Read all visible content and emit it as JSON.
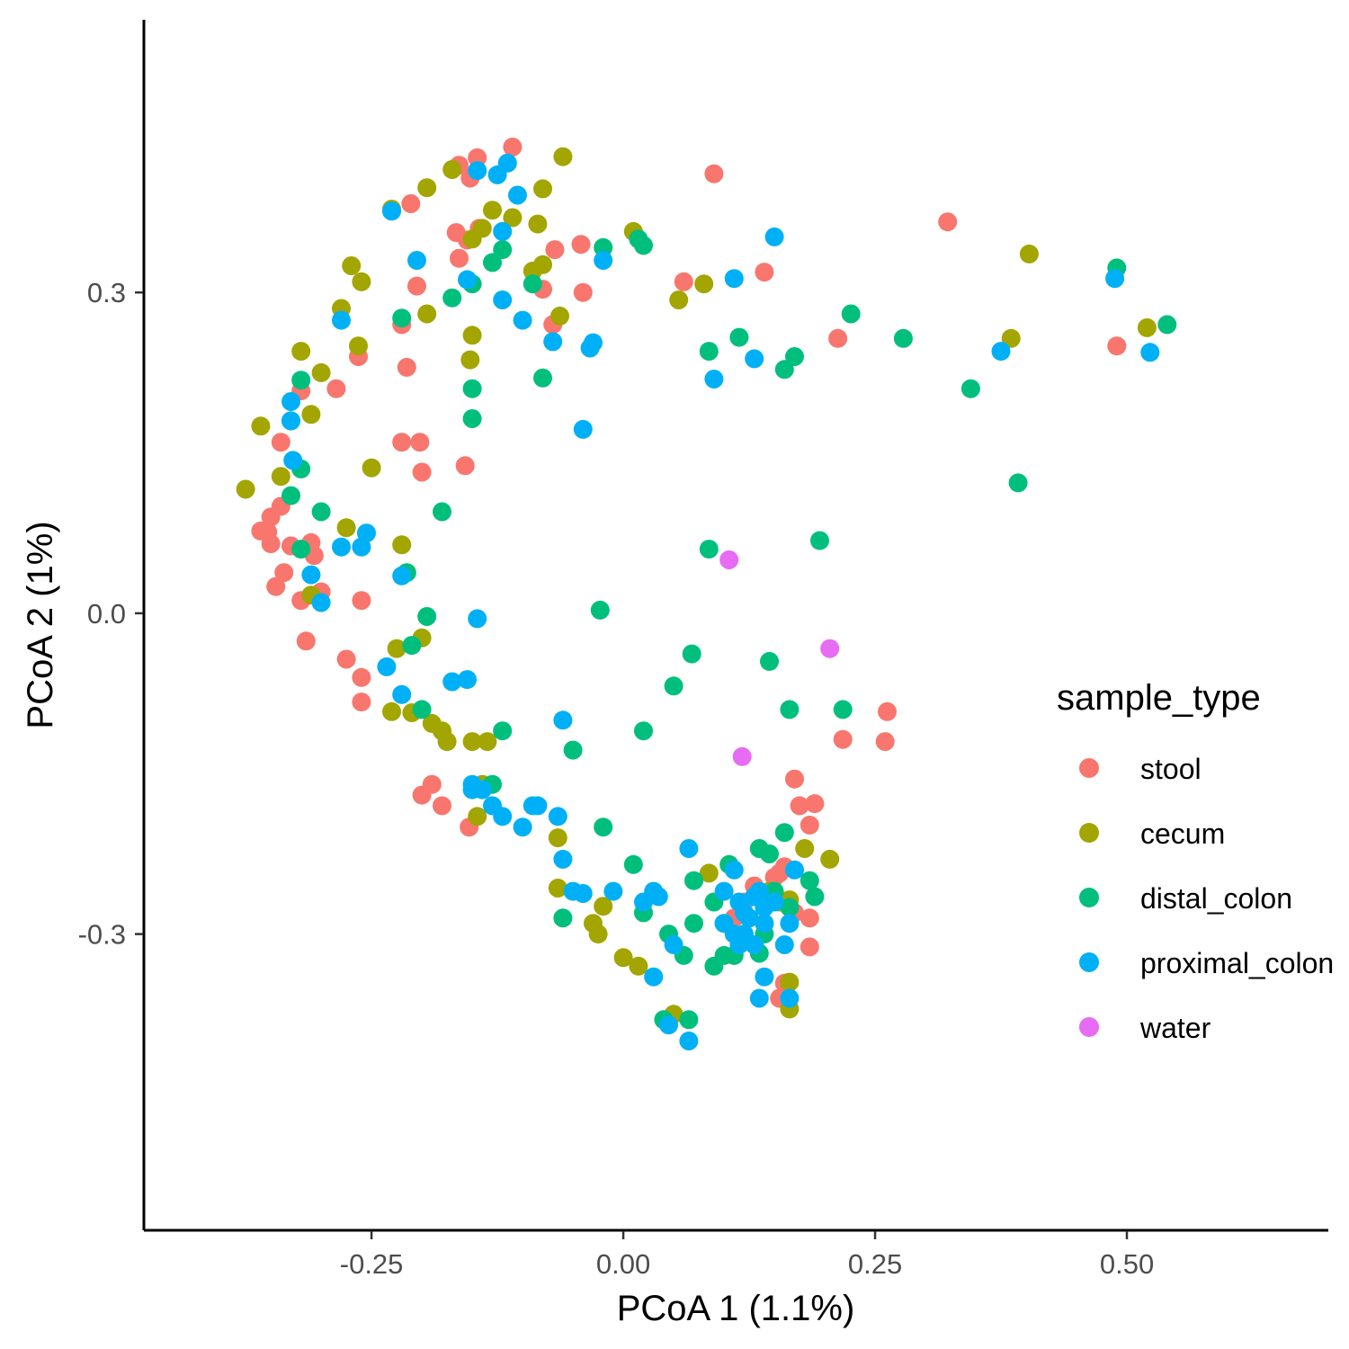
{
  "chart_data": {
    "type": "scatter",
    "title": "",
    "xlabel": "PCoA 1 (1.1%)",
    "ylabel": "PCoA 2 (1%)",
    "xlim": [
      -0.476,
      0.7
    ],
    "ylim": [
      -0.577,
      0.555
    ],
    "x_ticks": [
      {
        "value": -0.25,
        "label": "-0.25"
      },
      {
        "value": 0.0,
        "label": "0.00"
      },
      {
        "value": 0.25,
        "label": "0.25"
      },
      {
        "value": 0.5,
        "label": "0.50"
      }
    ],
    "y_ticks": [
      {
        "value": 0.3,
        "label": "0.3"
      },
      {
        "value": 0.0,
        "label": "0.0"
      },
      {
        "value": -0.3,
        "label": "-0.3"
      }
    ],
    "grid": false,
    "legend": {
      "title": "sample_type",
      "placement": "right",
      "entries": [
        "stool",
        "cecum",
        "distal_colon",
        "proximal_colon",
        "water"
      ]
    },
    "series": [
      {
        "name": "stool",
        "color": "#F8766D",
        "points": [
          [
            -0.11,
            0.436
          ],
          [
            -0.145,
            0.426
          ],
          [
            -0.163,
            0.419
          ],
          [
            -0.152,
            0.407
          ],
          [
            -0.211,
            0.383
          ],
          [
            -0.166,
            0.356
          ],
          [
            -0.143,
            0.36
          ],
          [
            -0.155,
            0.349
          ],
          [
            -0.163,
            0.332
          ],
          [
            -0.205,
            0.306
          ],
          [
            -0.068,
            0.34
          ],
          [
            -0.042,
            0.345
          ],
          [
            -0.08,
            0.303
          ],
          [
            -0.04,
            0.3
          ],
          [
            -0.07,
            0.27
          ],
          [
            -0.22,
            0.27
          ],
          [
            -0.263,
            0.24
          ],
          [
            -0.215,
            0.23
          ],
          [
            -0.285,
            0.21
          ],
          [
            -0.32,
            0.208
          ],
          [
            -0.34,
            0.16
          ],
          [
            -0.22,
            0.16
          ],
          [
            -0.202,
            0.16
          ],
          [
            -0.2,
            0.132
          ],
          [
            -0.157,
            0.138
          ],
          [
            -0.34,
            0.1
          ],
          [
            -0.35,
            0.09
          ],
          [
            -0.36,
            0.077
          ],
          [
            -0.353,
            0.076
          ],
          [
            -0.35,
            0.065
          ],
          [
            -0.33,
            0.063
          ],
          [
            -0.31,
            0.066
          ],
          [
            -0.307,
            0.054
          ],
          [
            -0.337,
            0.038
          ],
          [
            -0.345,
            0.025
          ],
          [
            -0.32,
            0.012
          ],
          [
            -0.3,
            0.02
          ],
          [
            -0.26,
            0.012
          ],
          [
            -0.315,
            -0.026
          ],
          [
            -0.275,
            -0.043
          ],
          [
            -0.26,
            -0.06
          ],
          [
            -0.26,
            -0.083
          ],
          [
            -0.19,
            -0.16
          ],
          [
            -0.2,
            -0.17
          ],
          [
            -0.18,
            -0.18
          ],
          [
            -0.153,
            -0.2
          ],
          [
            0.09,
            0.411
          ],
          [
            0.322,
            0.366
          ],
          [
            0.14,
            0.319
          ],
          [
            0.06,
            0.31
          ],
          [
            0.213,
            0.257
          ],
          [
            0.49,
            0.25
          ],
          [
            0.262,
            -0.092
          ],
          [
            0.26,
            -0.12
          ],
          [
            0.218,
            -0.118
          ],
          [
            0.17,
            -0.155
          ],
          [
            0.175,
            -0.18
          ],
          [
            0.19,
            -0.178
          ],
          [
            0.185,
            -0.198
          ],
          [
            0.16,
            -0.237
          ],
          [
            0.15,
            -0.247
          ],
          [
            0.135,
            -0.26
          ],
          [
            0.13,
            -0.255
          ],
          [
            0.12,
            -0.27
          ],
          [
            0.14,
            -0.29
          ],
          [
            0.11,
            -0.285
          ],
          [
            0.17,
            -0.28
          ],
          [
            0.185,
            -0.285
          ],
          [
            0.185,
            -0.312
          ],
          [
            0.16,
            -0.346
          ],
          [
            0.155,
            -0.36
          ],
          [
            0.155,
            -0.243
          ]
        ]
      },
      {
        "name": "cecum",
        "color": "#A3A500",
        "points": [
          [
            -0.06,
            0.427
          ],
          [
            -0.17,
            0.415
          ],
          [
            -0.195,
            0.398
          ],
          [
            -0.23,
            0.378
          ],
          [
            -0.08,
            0.397
          ],
          [
            -0.13,
            0.377
          ],
          [
            -0.11,
            0.37
          ],
          [
            -0.085,
            0.364
          ],
          [
            -0.14,
            0.36
          ],
          [
            -0.15,
            0.35
          ],
          [
            -0.08,
            0.326
          ],
          [
            -0.09,
            0.32
          ],
          [
            -0.27,
            0.325
          ],
          [
            -0.26,
            0.31
          ],
          [
            -0.28,
            0.285
          ],
          [
            -0.195,
            0.28
          ],
          [
            -0.063,
            0.278
          ],
          [
            -0.15,
            0.26
          ],
          [
            -0.263,
            0.25
          ],
          [
            -0.32,
            0.245
          ],
          [
            -0.152,
            0.237
          ],
          [
            -0.3,
            0.225
          ],
          [
            -0.31,
            0.186
          ],
          [
            -0.36,
            0.175
          ],
          [
            -0.25,
            0.136
          ],
          [
            -0.34,
            0.128
          ],
          [
            -0.375,
            0.116
          ],
          [
            -0.275,
            0.08
          ],
          [
            -0.22,
            0.064
          ],
          [
            -0.31,
            0.017
          ],
          [
            -0.225,
            -0.033
          ],
          [
            -0.2,
            -0.023
          ],
          [
            -0.23,
            -0.092
          ],
          [
            -0.21,
            -0.093
          ],
          [
            -0.19,
            -0.103
          ],
          [
            -0.18,
            -0.11
          ],
          [
            -0.175,
            -0.12
          ],
          [
            -0.15,
            -0.12
          ],
          [
            -0.135,
            -0.12
          ],
          [
            -0.14,
            -0.16
          ],
          [
            -0.145,
            -0.19
          ],
          [
            -0.065,
            -0.21
          ],
          [
            -0.065,
            -0.257
          ],
          [
            -0.02,
            -0.274
          ],
          [
            -0.03,
            -0.29
          ],
          [
            -0.025,
            -0.3
          ],
          [
            0.0,
            -0.322
          ],
          [
            0.015,
            -0.33
          ],
          [
            0.05,
            -0.375
          ],
          [
            0.085,
            -0.243
          ],
          [
            0.145,
            -0.26
          ],
          [
            0.155,
            -0.27
          ],
          [
            0.165,
            -0.268
          ],
          [
            0.18,
            -0.22
          ],
          [
            0.205,
            -0.23
          ],
          [
            0.165,
            -0.345
          ],
          [
            0.165,
            -0.37
          ],
          [
            0.01,
            0.357
          ],
          [
            0.08,
            0.308
          ],
          [
            0.055,
            0.293
          ],
          [
            0.403,
            0.336
          ],
          [
            0.385,
            0.257
          ],
          [
            0.52,
            0.267
          ]
        ]
      },
      {
        "name": "distal_colon",
        "color": "#00BF7D",
        "points": [
          [
            -0.13,
            0.328
          ],
          [
            -0.15,
            0.308
          ],
          [
            -0.17,
            0.295
          ],
          [
            -0.09,
            0.308
          ],
          [
            -0.12,
            0.34
          ],
          [
            -0.22,
            0.276
          ],
          [
            -0.32,
            0.218
          ],
          [
            -0.15,
            0.21
          ],
          [
            -0.15,
            0.182
          ],
          [
            -0.08,
            0.22
          ],
          [
            -0.02,
            0.342
          ],
          [
            0.015,
            0.35
          ],
          [
            0.02,
            0.344
          ],
          [
            -0.33,
            0.18
          ],
          [
            -0.32,
            0.135
          ],
          [
            -0.33,
            0.11
          ],
          [
            -0.3,
            0.095
          ],
          [
            -0.18,
            0.095
          ],
          [
            -0.32,
            0.06
          ],
          [
            -0.215,
            0.038
          ],
          [
            -0.195,
            -0.003
          ],
          [
            -0.21,
            -0.03
          ],
          [
            -0.2,
            -0.09
          ],
          [
            -0.12,
            -0.11
          ],
          [
            -0.13,
            -0.16
          ],
          [
            -0.05,
            -0.128
          ],
          [
            -0.023,
            0.003
          ],
          [
            0.02,
            -0.11
          ],
          [
            0.05,
            -0.068
          ],
          [
            0.068,
            -0.038
          ],
          [
            0.085,
            0.06
          ],
          [
            0.145,
            -0.045
          ],
          [
            0.165,
            -0.09
          ],
          [
            0.218,
            -0.09
          ],
          [
            0.195,
            0.068
          ],
          [
            0.085,
            0.245
          ],
          [
            0.115,
            0.258
          ],
          [
            0.16,
            0.228
          ],
          [
            0.17,
            0.24
          ],
          [
            0.226,
            0.28
          ],
          [
            0.278,
            0.257
          ],
          [
            0.345,
            0.21
          ],
          [
            0.392,
            0.122
          ],
          [
            0.49,
            0.323
          ],
          [
            0.54,
            0.27
          ],
          [
            -0.02,
            -0.2
          ],
          [
            0.01,
            -0.235
          ],
          [
            0.045,
            -0.3
          ],
          [
            0.06,
            -0.32
          ],
          [
            0.07,
            -0.25
          ],
          [
            0.07,
            -0.29
          ],
          [
            0.09,
            -0.27
          ],
          [
            0.1,
            -0.29
          ],
          [
            0.11,
            -0.32
          ],
          [
            0.105,
            -0.235
          ],
          [
            0.135,
            -0.22
          ],
          [
            0.145,
            -0.225
          ],
          [
            0.15,
            -0.26
          ],
          [
            0.16,
            -0.205
          ],
          [
            0.165,
            -0.275
          ],
          [
            0.185,
            -0.25
          ],
          [
            0.19,
            -0.265
          ],
          [
            0.14,
            -0.3
          ],
          [
            0.135,
            -0.318
          ],
          [
            0.1,
            -0.32
          ],
          [
            0.09,
            -0.33
          ],
          [
            0.065,
            -0.38
          ],
          [
            0.04,
            -0.38
          ],
          [
            -0.06,
            -0.285
          ],
          [
            0.02,
            -0.28
          ]
        ]
      },
      {
        "name": "proximal_colon",
        "color": "#00B0F6",
        "points": [
          [
            -0.115,
            0.421
          ],
          [
            -0.125,
            0.41
          ],
          [
            -0.145,
            0.414
          ],
          [
            -0.105,
            0.391
          ],
          [
            -0.23,
            0.376
          ],
          [
            -0.12,
            0.357
          ],
          [
            -0.205,
            0.33
          ],
          [
            -0.155,
            0.312
          ],
          [
            -0.12,
            0.293
          ],
          [
            -0.1,
            0.274
          ],
          [
            -0.07,
            0.254
          ],
          [
            -0.03,
            0.253
          ],
          [
            -0.033,
            0.248
          ],
          [
            -0.02,
            0.33
          ],
          [
            0.11,
            0.313
          ],
          [
            0.15,
            0.352
          ],
          [
            0.09,
            0.219
          ],
          [
            0.13,
            0.238
          ],
          [
            0.375,
            0.245
          ],
          [
            0.488,
            0.313
          ],
          [
            0.523,
            0.244
          ],
          [
            -0.28,
            0.274
          ],
          [
            -0.33,
            0.198
          ],
          [
            -0.33,
            0.18
          ],
          [
            -0.328,
            0.143
          ],
          [
            -0.04,
            0.172
          ],
          [
            -0.28,
            0.062
          ],
          [
            -0.26,
            0.062
          ],
          [
            -0.255,
            0.075
          ],
          [
            -0.22,
            0.035
          ],
          [
            -0.31,
            0.036
          ],
          [
            -0.3,
            0.01
          ],
          [
            -0.145,
            -0.005
          ],
          [
            -0.235,
            -0.05
          ],
          [
            -0.22,
            -0.076
          ],
          [
            -0.17,
            -0.064
          ],
          [
            -0.155,
            -0.062
          ],
          [
            -0.06,
            -0.1
          ],
          [
            -0.15,
            -0.165
          ],
          [
            -0.15,
            -0.16
          ],
          [
            -0.14,
            -0.165
          ],
          [
            -0.13,
            -0.18
          ],
          [
            -0.12,
            -0.19
          ],
          [
            -0.1,
            -0.2
          ],
          [
            -0.09,
            -0.18
          ],
          [
            -0.085,
            -0.18
          ],
          [
            -0.065,
            -0.19
          ],
          [
            -0.06,
            -0.23
          ],
          [
            -0.05,
            -0.26
          ],
          [
            -0.04,
            -0.262
          ],
          [
            -0.01,
            -0.26
          ],
          [
            0.02,
            -0.27
          ],
          [
            0.03,
            -0.26
          ],
          [
            0.035,
            -0.265
          ],
          [
            0.05,
            -0.31
          ],
          [
            0.065,
            -0.22
          ],
          [
            0.1,
            -0.26
          ],
          [
            0.11,
            -0.24
          ],
          [
            0.115,
            -0.27
          ],
          [
            0.12,
            -0.28
          ],
          [
            0.125,
            -0.285
          ],
          [
            0.13,
            -0.265
          ],
          [
            0.135,
            -0.26
          ],
          [
            0.14,
            -0.275
          ],
          [
            0.12,
            -0.3
          ],
          [
            0.115,
            -0.31
          ],
          [
            0.13,
            -0.31
          ],
          [
            0.14,
            -0.29
          ],
          [
            0.15,
            -0.27
          ],
          [
            0.17,
            -0.24
          ],
          [
            0.16,
            -0.31
          ],
          [
            0.165,
            -0.29
          ],
          [
            0.14,
            -0.34
          ],
          [
            0.135,
            -0.36
          ],
          [
            0.165,
            -0.36
          ],
          [
            0.03,
            -0.34
          ],
          [
            0.045,
            -0.385
          ],
          [
            0.065,
            -0.4
          ],
          [
            0.1,
            -0.29
          ],
          [
            0.11,
            -0.3
          ]
        ]
      },
      {
        "name": "water",
        "color": "#E76BF3",
        "points": [
          [
            0.105,
            0.05
          ],
          [
            0.205,
            -0.033
          ],
          [
            0.118,
            -0.134
          ]
        ]
      }
    ]
  }
}
